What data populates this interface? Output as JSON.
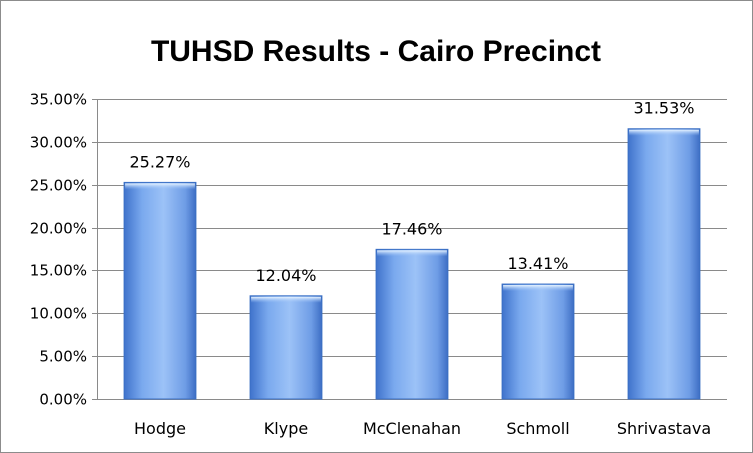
{
  "chart_data": {
    "type": "bar",
    "title": "TUHSD Results - Cairo Precinct",
    "categories": [
      "Hodge",
      "Klype",
      "McClenahan",
      "Schmoll",
      "Shrivastava"
    ],
    "values": [
      25.27,
      12.04,
      17.46,
      13.41,
      31.53
    ],
    "data_labels": [
      "25.27%",
      "12.04%",
      "17.46%",
      "13.41%",
      "31.53%"
    ],
    "y_ticks": [
      0,
      5,
      10,
      15,
      20,
      25,
      30,
      35
    ],
    "y_tick_labels": [
      "0.00%",
      "5.00%",
      "10.00%",
      "15.00%",
      "20.00%",
      "25.00%",
      "30.00%",
      "35.00%"
    ],
    "ylim": [
      0,
      35
    ],
    "grid": true,
    "legend": "none",
    "bar_color": "#6f9ee8",
    "bar_edge_color": "#3a6fc4"
  }
}
